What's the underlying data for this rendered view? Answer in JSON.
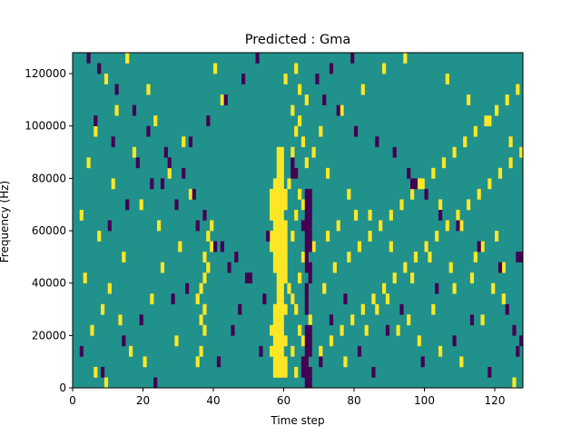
{
  "chart_data": {
    "type": "heatmap",
    "title": "Predicted : Gma",
    "xlabel": "Time step",
    "ylabel": "Frequency (Hz)",
    "xlim": [
      0,
      128
    ],
    "ylim": [
      0,
      128000
    ],
    "xticks": [
      0,
      20,
      40,
      60,
      80,
      100,
      120
    ],
    "yticks": [
      0,
      20000,
      40000,
      60000,
      80000,
      100000,
      120000
    ],
    "grid": false,
    "colormap": "viridis",
    "colors": {
      "background": "#21918c",
      "low": "#440154",
      "high": "#fde725"
    },
    "row_height_hz": 4000,
    "col_width_steps": 1,
    "cells": {
      "high": [
        [
          57,
          4000
        ],
        [
          58,
          4000
        ],
        [
          59,
          4000
        ],
        [
          60,
          4000
        ],
        [
          57,
          8000
        ],
        [
          58,
          8000
        ],
        [
          59,
          8000
        ],
        [
          60,
          8000
        ],
        [
          56,
          12000
        ],
        [
          57,
          12000
        ],
        [
          58,
          12000
        ],
        [
          59,
          12000
        ],
        [
          57,
          16000
        ],
        [
          58,
          16000
        ],
        [
          59,
          16000
        ],
        [
          60,
          16000
        ],
        [
          56,
          20000
        ],
        [
          57,
          20000
        ],
        [
          58,
          20000
        ],
        [
          59,
          20000
        ],
        [
          57,
          24000
        ],
        [
          58,
          24000
        ],
        [
          59,
          24000
        ],
        [
          57,
          28000
        ],
        [
          58,
          28000
        ],
        [
          59,
          28000
        ],
        [
          60,
          28000
        ],
        [
          58,
          32000
        ],
        [
          59,
          32000
        ],
        [
          58,
          36000
        ],
        [
          59,
          36000
        ],
        [
          58,
          40000
        ],
        [
          59,
          40000
        ],
        [
          60,
          40000
        ],
        [
          57,
          44000
        ],
        [
          58,
          44000
        ],
        [
          59,
          44000
        ],
        [
          60,
          44000
        ],
        [
          57,
          48000
        ],
        [
          58,
          48000
        ],
        [
          59,
          48000
        ],
        [
          60,
          48000
        ],
        [
          56,
          52000
        ],
        [
          57,
          52000
        ],
        [
          58,
          52000
        ],
        [
          59,
          52000
        ],
        [
          60,
          52000
        ],
        [
          56,
          56000
        ],
        [
          57,
          56000
        ],
        [
          58,
          56000
        ],
        [
          59,
          56000
        ],
        [
          60,
          56000
        ],
        [
          57,
          60000
        ],
        [
          58,
          60000
        ],
        [
          59,
          60000
        ],
        [
          60,
          60000
        ],
        [
          56,
          64000
        ],
        [
          57,
          64000
        ],
        [
          58,
          64000
        ],
        [
          59,
          64000
        ],
        [
          56,
          68000
        ],
        [
          57,
          68000
        ],
        [
          58,
          68000
        ],
        [
          59,
          68000
        ],
        [
          60,
          68000
        ],
        [
          56,
          72000
        ],
        [
          57,
          72000
        ],
        [
          58,
          72000
        ],
        [
          59,
          72000
        ],
        [
          60,
          72000
        ],
        [
          57,
          76000
        ],
        [
          58,
          76000
        ],
        [
          59,
          76000
        ],
        [
          58,
          80000
        ],
        [
          59,
          80000
        ],
        [
          58,
          84000
        ],
        [
          59,
          84000
        ],
        [
          58,
          88000
        ],
        [
          59,
          88000
        ],
        [
          35,
          8000
        ],
        [
          36,
          12000
        ],
        [
          37,
          20000
        ],
        [
          36,
          24000
        ],
        [
          37,
          28000
        ],
        [
          35,
          32000
        ],
        [
          36,
          36000
        ],
        [
          37,
          40000
        ],
        [
          38,
          44000
        ],
        [
          37,
          48000
        ],
        [
          39,
          52000
        ],
        [
          38,
          56000
        ],
        [
          39,
          60000
        ],
        [
          9,
          0
        ],
        [
          6,
          4000
        ],
        [
          20,
          8000
        ],
        [
          16,
          12000
        ],
        [
          29,
          16000
        ],
        [
          5,
          20000
        ],
        [
          13,
          24000
        ],
        [
          8,
          28000
        ],
        [
          22,
          32000
        ],
        [
          10,
          36000
        ],
        [
          3,
          40000
        ],
        [
          25,
          44000
        ],
        [
          14,
          48000
        ],
        [
          30,
          52000
        ],
        [
          7,
          56000
        ],
        [
          24,
          60000
        ],
        [
          2,
          64000
        ],
        [
          19,
          68000
        ],
        [
          33,
          72000
        ],
        [
          11,
          76000
        ],
        [
          27,
          80000
        ],
        [
          4,
          84000
        ],
        [
          17,
          88000
        ],
        [
          31,
          92000
        ],
        [
          6,
          96000
        ],
        [
          23,
          100000
        ],
        [
          12,
          104000
        ],
        [
          42,
          108000
        ],
        [
          21,
          112000
        ],
        [
          9,
          116000
        ],
        [
          40,
          120000
        ],
        [
          15,
          124000
        ],
        [
          63,
          4000
        ],
        [
          66,
          8000
        ],
        [
          62,
          12000
        ],
        [
          65,
          16000
        ],
        [
          64,
          20000
        ],
        [
          67,
          24000
        ],
        [
          63,
          28000
        ],
        [
          62,
          32000
        ],
        [
          61,
          36000
        ],
        [
          64,
          40000
        ],
        [
          66,
          44000
        ],
        [
          65,
          48000
        ],
        [
          68,
          52000
        ],
        [
          62,
          56000
        ],
        [
          67,
          60000
        ],
        [
          63,
          64000
        ],
        [
          65,
          68000
        ],
        [
          64,
          72000
        ],
        [
          61,
          76000
        ],
        [
          63,
          80000
        ],
        [
          66,
          84000
        ],
        [
          62,
          88000
        ],
        [
          65,
          92000
        ],
        [
          63,
          96000
        ],
        [
          64,
          100000
        ],
        [
          62,
          104000
        ],
        [
          66,
          108000
        ],
        [
          64,
          112000
        ],
        [
          60,
          116000
        ],
        [
          63,
          120000
        ],
        [
          70,
          12000
        ],
        [
          73,
          16000
        ],
        [
          76,
          20000
        ],
        [
          79,
          24000
        ],
        [
          82,
          28000
        ],
        [
          85,
          32000
        ],
        [
          88,
          36000
        ],
        [
          91,
          40000
        ],
        [
          94,
          44000
        ],
        [
          97,
          48000
        ],
        [
          100,
          52000
        ],
        [
          103,
          56000
        ],
        [
          106,
          60000
        ],
        [
          109,
          64000
        ],
        [
          112,
          68000
        ],
        [
          115,
          72000
        ],
        [
          118,
          76000
        ],
        [
          121,
          80000
        ],
        [
          124,
          84000
        ],
        [
          127,
          88000
        ],
        [
          74,
          44000
        ],
        [
          78,
          48000
        ],
        [
          81,
          52000
        ],
        [
          84,
          56000
        ],
        [
          87,
          60000
        ],
        [
          90,
          64000
        ],
        [
          93,
          68000
        ],
        [
          96,
          72000
        ],
        [
          99,
          76000
        ],
        [
          102,
          80000
        ],
        [
          105,
          84000
        ],
        [
          108,
          88000
        ],
        [
          111,
          92000
        ],
        [
          114,
          96000
        ],
        [
          117,
          100000
        ],
        [
          120,
          104000
        ],
        [
          123,
          108000
        ],
        [
          126,
          112000
        ],
        [
          72,
          56000
        ],
        [
          75,
          60000
        ],
        [
          80,
          64000
        ],
        [
          86,
          28000
        ],
        [
          92,
          20000
        ],
        [
          98,
          16000
        ],
        [
          104,
          12000
        ],
        [
          110,
          8000
        ],
        [
          116,
          24000
        ],
        [
          122,
          32000
        ],
        [
          125,
          0
        ],
        [
          119,
          36000
        ],
        [
          113,
          40000
        ],
        [
          107,
          44000
        ],
        [
          101,
          48000
        ],
        [
          95,
          24000
        ],
        [
          89,
          32000
        ],
        [
          83,
          20000
        ],
        [
          77,
          8000
        ],
        [
          71,
          36000
        ],
        [
          98,
          76000
        ],
        [
          104,
          68000
        ],
        [
          110,
          60000
        ],
        [
          116,
          52000
        ],
        [
          122,
          44000
        ],
        [
          120,
          56000
        ],
        [
          114,
          48000
        ],
        [
          108,
          36000
        ],
        [
          102,
          28000
        ],
        [
          96,
          40000
        ],
        [
          90,
          52000
        ],
        [
          84,
          64000
        ],
        [
          78,
          72000
        ],
        [
          72,
          80000
        ],
        [
          68,
          88000
        ],
        [
          70,
          96000
        ],
        [
          76,
          104000
        ],
        [
          82,
          112000
        ],
        [
          88,
          120000
        ],
        [
          94,
          124000
        ],
        [
          106,
          116000
        ],
        [
          112,
          108000
        ],
        [
          118,
          100000
        ],
        [
          124,
          92000
        ]
      ],
      "low": [
        [
          66,
          0
        ],
        [
          67,
          0
        ],
        [
          65,
          4000
        ],
        [
          66,
          4000
        ],
        [
          67,
          4000
        ],
        [
          65,
          8000
        ],
        [
          66,
          8000
        ],
        [
          66,
          12000
        ],
        [
          67,
          12000
        ],
        [
          66,
          16000
        ],
        [
          67,
          16000
        ],
        [
          66,
          20000
        ],
        [
          67,
          20000
        ],
        [
          66,
          28000
        ],
        [
          66,
          32000
        ],
        [
          66,
          36000
        ],
        [
          67,
          40000
        ],
        [
          66,
          44000
        ],
        [
          67,
          44000
        ],
        [
          66,
          48000
        ],
        [
          66,
          52000
        ],
        [
          67,
          52000
        ],
        [
          66,
          56000
        ],
        [
          67,
          56000
        ],
        [
          65,
          60000
        ],
        [
          66,
          60000
        ],
        [
          67,
          60000
        ],
        [
          66,
          64000
        ],
        [
          67,
          64000
        ],
        [
          66,
          68000
        ],
        [
          67,
          68000
        ],
        [
          66,
          72000
        ],
        [
          67,
          72000
        ],
        [
          62,
          80000
        ],
        [
          63,
          80000
        ],
        [
          62,
          84000
        ],
        [
          55,
          56000
        ],
        [
          96,
          76000
        ],
        [
          97,
          76000
        ],
        [
          126,
          48000
        ],
        [
          127,
          48000
        ],
        [
          127,
          16000
        ],
        [
          126,
          12000
        ],
        [
          2,
          12000
        ],
        [
          8,
          4000
        ],
        [
          14,
          16000
        ],
        [
          19,
          24000
        ],
        [
          23,
          0
        ],
        [
          28,
          32000
        ],
        [
          32,
          36000
        ],
        [
          41,
          8000
        ],
        [
          45,
          20000
        ],
        [
          47,
          28000
        ],
        [
          49,
          40000
        ],
        [
          53,
          12000
        ],
        [
          44,
          44000
        ],
        [
          42,
          52000
        ],
        [
          37,
          64000
        ],
        [
          34,
          72000
        ],
        [
          31,
          80000
        ],
        [
          26,
          88000
        ],
        [
          21,
          96000
        ],
        [
          17,
          104000
        ],
        [
          12,
          112000
        ],
        [
          7,
          120000
        ],
        [
          4,
          124000
        ],
        [
          10,
          60000
        ],
        [
          15,
          68000
        ],
        [
          22,
          76000
        ],
        [
          27,
          84000
        ],
        [
          33,
          92000
        ],
        [
          38,
          100000
        ],
        [
          43,
          108000
        ],
        [
          48,
          116000
        ],
        [
          52,
          124000
        ],
        [
          6,
          100000
        ],
        [
          11,
          92000
        ],
        [
          18,
          84000
        ],
        [
          25,
          76000
        ],
        [
          29,
          68000
        ],
        [
          35,
          60000
        ],
        [
          40,
          52000
        ],
        [
          46,
          48000
        ],
        [
          50,
          40000
        ],
        [
          54,
          32000
        ],
        [
          70,
          8000
        ],
        [
          73,
          24000
        ],
        [
          77,
          32000
        ],
        [
          81,
          12000
        ],
        [
          85,
          4000
        ],
        [
          89,
          20000
        ],
        [
          93,
          28000
        ],
        [
          99,
          8000
        ],
        [
          103,
          36000
        ],
        [
          108,
          16000
        ],
        [
          113,
          24000
        ],
        [
          118,
          4000
        ],
        [
          123,
          28000
        ],
        [
          125,
          20000
        ],
        [
          121,
          44000
        ],
        [
          115,
          52000
        ],
        [
          109,
          60000
        ],
        [
          104,
          64000
        ],
        [
          100,
          72000
        ],
        [
          95,
          80000
        ],
        [
          91,
          88000
        ],
        [
          86,
          92000
        ],
        [
          80,
          96000
        ],
        [
          75,
          104000
        ],
        [
          71,
          108000
        ],
        [
          69,
          116000
        ],
        [
          73,
          120000
        ],
        [
          79,
          124000
        ]
      ]
    }
  }
}
